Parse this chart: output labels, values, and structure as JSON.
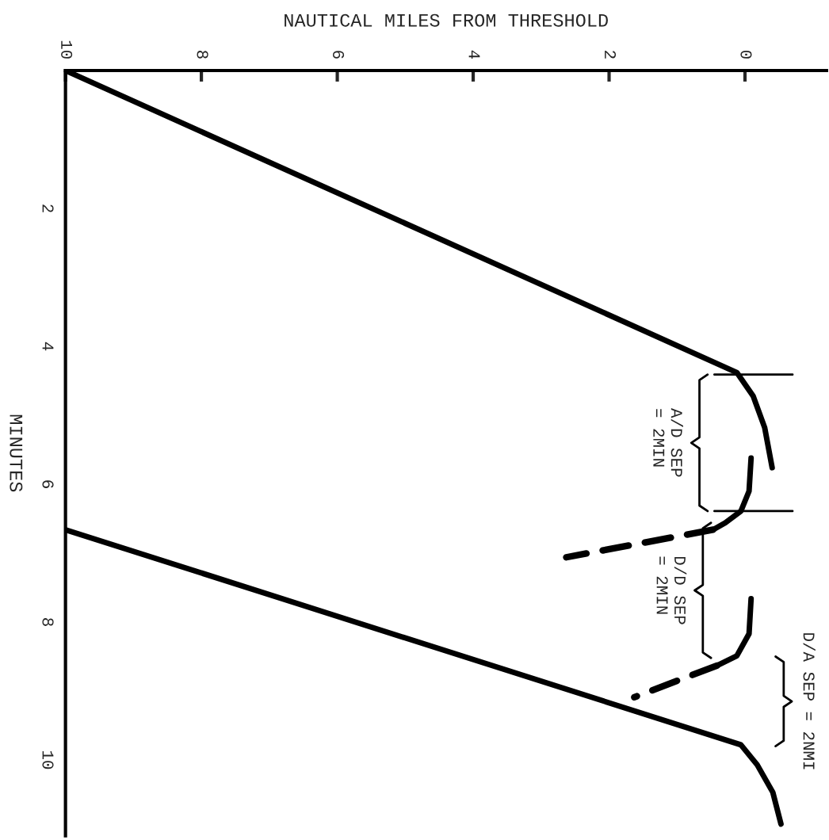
{
  "chart_data": {
    "type": "line",
    "xlabel": "NAUTICAL MILES FROM THRESHOLD",
    "ylabel": "MINUTES",
    "xlim": [
      10,
      -1.2
    ],
    "ylim": [
      11.1,
      0
    ],
    "xticks": [
      10,
      8,
      6,
      4,
      2,
      0
    ],
    "yticks": [
      2,
      4,
      6,
      8,
      10
    ],
    "grid": false,
    "marker": "none",
    "series": [
      {
        "color": "#000000",
        "line_style": "solid",
        "x": [
          10,
          0.12,
          -0.12,
          -0.29,
          -0.4
        ],
        "values": [
          0,
          4.38,
          4.72,
          5.18,
          5.76
        ]
      },
      {
        "color": "#000000",
        "line_style": "solid",
        "x": [
          -0.09,
          -0.06,
          0.06,
          0.29,
          0.47
        ],
        "values": [
          5.62,
          6.1,
          6.39,
          6.56,
          6.66
        ]
      },
      {
        "color": "#000000",
        "line_style": "dashed",
        "x": [
          0.47,
          2.63
        ],
        "values": [
          6.66,
          7.06
        ]
      },
      {
        "color": "#000000",
        "line_style": "solid",
        "x": [
          -0.09,
          -0.06,
          0.12,
          0.41
        ],
        "values": [
          7.66,
          8.17,
          8.49,
          8.63
        ]
      },
      {
        "color": "#000000",
        "line_style": "dashed",
        "x": [
          0.41,
          1.63
        ],
        "values": [
          8.63,
          9.09
        ]
      },
      {
        "color": "#000000",
        "line_style": "solid",
        "x": [
          10,
          0.06,
          -0.18,
          -0.41,
          -0.53
        ],
        "values": [
          6.66,
          9.78,
          10.07,
          10.47,
          10.93
        ]
      }
    ],
    "annotations": [
      "A/D SEP\n= 2MIN",
      "D/D SEP\n= 2MIN",
      "D/A SEP = 2NMI"
    ]
  }
}
